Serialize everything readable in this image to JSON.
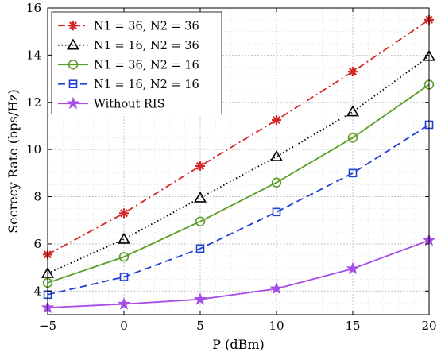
{
  "chart_data": {
    "type": "line",
    "xlabel": "P (dBm)",
    "ylabel": "Secrecy Rate (bps/Hz)",
    "xlim": [
      -5,
      20
    ],
    "ylim": [
      3,
      16
    ],
    "xticks": [
      -5,
      0,
      5,
      10,
      15,
      20
    ],
    "yticks": [
      4,
      6,
      8,
      10,
      12,
      14,
      16
    ],
    "grid": true,
    "legend_position": "top-left",
    "x": [
      -5,
      0,
      5,
      10,
      15,
      20
    ],
    "series": [
      {
        "name": "N1 = 36,  N2 = 36",
        "values": [
          5.55,
          7.3,
          9.3,
          11.25,
          13.3,
          15.5
        ],
        "color": "#d62728",
        "dash": "dashdot",
        "marker": "asterisk"
      },
      {
        "name": "N1 = 16,  N2 = 36",
        "values": [
          4.75,
          6.2,
          7.95,
          9.7,
          11.6,
          13.95
        ],
        "color": "#000000",
        "dash": "dotted",
        "marker": "triangle"
      },
      {
        "name": "N1 = 36,  N2 = 16",
        "values": [
          4.35,
          5.45,
          6.95,
          8.6,
          10.5,
          12.75
        ],
        "color": "#5a9e25",
        "dash": "solid",
        "marker": "circle"
      },
      {
        "name": "N1 = 16,  N2 = 16",
        "values": [
          3.85,
          4.6,
          5.8,
          7.35,
          9.0,
          11.05
        ],
        "color": "#1f3fd6",
        "dash": "dashed",
        "marker": "square"
      },
      {
        "name": "Without RIS",
        "values": [
          3.3,
          3.45,
          3.65,
          4.1,
          4.95,
          6.15
        ],
        "color": "#a64ce8",
        "dash": "solid",
        "marker": "star"
      }
    ]
  }
}
